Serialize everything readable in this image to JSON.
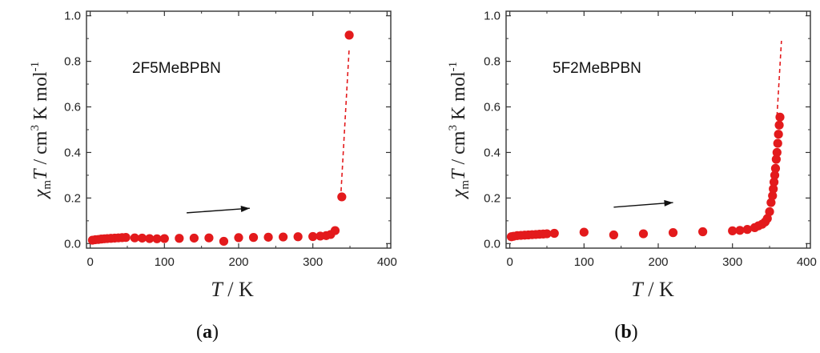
{
  "chart_data": [
    {
      "type": "scatter",
      "panel_label": "(a)",
      "panel_letter": "a",
      "annotation": "2F5MeBPBN",
      "xlabel": "T / K",
      "ylabel": "χmT / cm3 K mol-1",
      "xlim": [
        -5,
        405
      ],
      "ylim": [
        -0.02,
        1.02
      ],
      "xticks": [
        0,
        100,
        200,
        300,
        400
      ],
      "yticks": [
        0.0,
        0.2,
        0.4,
        0.6,
        0.8,
        1.0
      ],
      "ytick_labels": [
        "0.0",
        "0.2",
        "0.4",
        "0.6",
        "0.8",
        "1.0"
      ],
      "arrow": {
        "from": [
          130,
          0.135
        ],
        "to": [
          215,
          0.155
        ]
      },
      "dashed_segment": [
        [
          338,
          0.23
        ],
        [
          349,
          0.86
        ]
      ],
      "series": [
        {
          "name": "2F5MeBPBN",
          "color": "#e31a1c",
          "x": [
            3,
            7,
            11,
            15,
            19,
            23,
            28,
            33,
            38,
            43,
            48,
            60,
            70,
            80,
            90,
            100,
            120,
            140,
            160,
            180,
            200,
            220,
            240,
            260,
            280,
            300,
            310,
            318,
            324,
            330,
            339,
            349
          ],
          "y": [
            0.015,
            0.017,
            0.018,
            0.02,
            0.021,
            0.022,
            0.023,
            0.024,
            0.025,
            0.026,
            0.027,
            0.025,
            0.024,
            0.022,
            0.021,
            0.022,
            0.023,
            0.024,
            0.025,
            0.01,
            0.026,
            0.027,
            0.028,
            0.029,
            0.03,
            0.031,
            0.033,
            0.035,
            0.04,
            0.057,
            0.205,
            0.915
          ]
        }
      ]
    },
    {
      "type": "scatter",
      "panel_label": "(b)",
      "panel_letter": "b",
      "annotation": "5F2MeBPBN",
      "xlabel": "T / K",
      "ylabel": "χmT / cm3 K mol-1",
      "xlim": [
        -5,
        405
      ],
      "ylim": [
        -0.02,
        1.02
      ],
      "xticks": [
        0,
        100,
        200,
        300,
        400
      ],
      "yticks": [
        0.0,
        0.2,
        0.4,
        0.6,
        0.8,
        1.0
      ],
      "ytick_labels": [
        "0.0",
        "0.2",
        "0.4",
        "0.6",
        "0.8",
        "1.0"
      ],
      "arrow": {
        "from": [
          140,
          0.16
        ],
        "to": [
          220,
          0.18
        ]
      },
      "dashed_segment": [
        [
          360,
          0.56
        ],
        [
          366,
          0.89
        ]
      ],
      "series": [
        {
          "name": "5F2MeBPBN",
          "color": "#e31a1c",
          "x": [
            2,
            5,
            10,
            15,
            20,
            25,
            30,
            35,
            40,
            45,
            50,
            60,
            100,
            140,
            180,
            220,
            260,
            300,
            310,
            320,
            330,
            335,
            340,
            344,
            347,
            350,
            352,
            354,
            355,
            356,
            357,
            358,
            359,
            360,
            361,
            362,
            363,
            364
          ],
          "y": [
            0.03,
            0.032,
            0.035,
            0.036,
            0.037,
            0.038,
            0.039,
            0.04,
            0.041,
            0.042,
            0.043,
            0.045,
            0.05,
            0.038,
            0.043,
            0.048,
            0.052,
            0.056,
            0.058,
            0.062,
            0.07,
            0.078,
            0.085,
            0.095,
            0.11,
            0.14,
            0.18,
            0.21,
            0.24,
            0.27,
            0.3,
            0.33,
            0.37,
            0.4,
            0.44,
            0.48,
            0.52,
            0.555
          ]
        }
      ]
    }
  ]
}
